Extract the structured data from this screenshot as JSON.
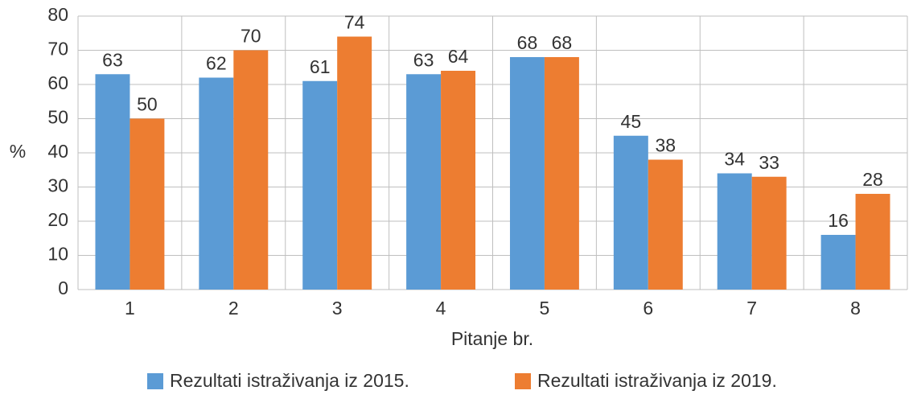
{
  "chart_data": {
    "type": "bar",
    "x_label": "Pitanje br.",
    "y_label": "%",
    "categories": [
      "1",
      "2",
      "3",
      "4",
      "5",
      "6",
      "7",
      "8"
    ],
    "series": [
      {
        "name": "Rezultati istraživanja iz 2015.",
        "color": "#5b9bd5",
        "values": [
          63,
          62,
          61,
          63,
          68,
          45,
          34,
          16
        ]
      },
      {
        "name": "Rezultati istraživanja iz 2019.",
        "color": "#ed7d31",
        "values": [
          50,
          70,
          74,
          64,
          68,
          38,
          33,
          28
        ]
      }
    ],
    "ylim": [
      0,
      80
    ],
    "yticks": [
      0,
      10,
      20,
      30,
      40,
      50,
      60,
      70,
      80
    ],
    "grid": true,
    "legend": "bottom"
  }
}
